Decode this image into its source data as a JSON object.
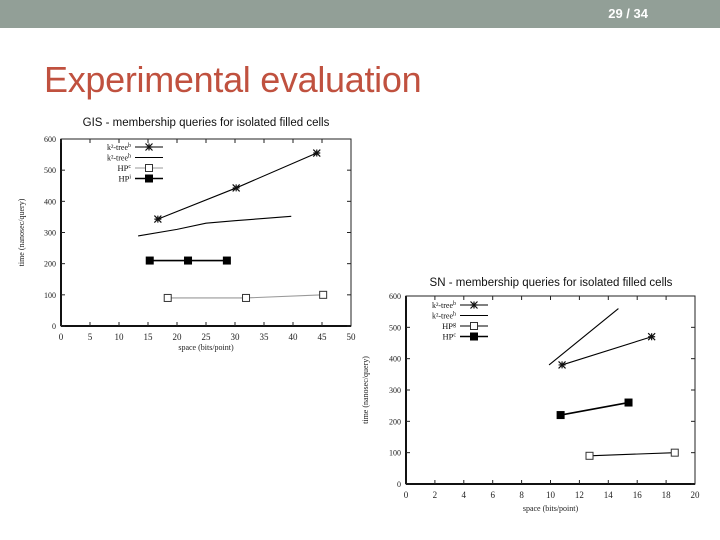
{
  "slide": {
    "page_indicator": "29 / 34",
    "title": "Experimental evaluation",
    "header_bar_color": "#929f97",
    "title_color": "#c0513f"
  },
  "chart_data": [
    {
      "type": "line",
      "title": "GIS - membership queries for isolated filled cells",
      "xlabel": "space (bits/point)",
      "ylabel": "time (nanosec/query)",
      "xlim": [
        0,
        50
      ],
      "ylim": [
        0,
        600
      ],
      "xticks": [
        0,
        5,
        10,
        15,
        20,
        25,
        30,
        35,
        40,
        45,
        50
      ],
      "yticks": [
        0,
        100,
        200,
        300,
        400,
        500,
        600
      ],
      "grid": false,
      "legend_position": "top-left",
      "series": [
        {
          "name": "k²-tree",
          "sup": "b",
          "marker": "star",
          "line": "solid",
          "color": "#000000",
          "x": [
            16.7,
            30.2,
            44.1
          ],
          "y": [
            343,
            443,
            555
          ]
        },
        {
          "name": "k²-tree",
          "sup": "h",
          "marker": "none",
          "line": "solid",
          "color": "#000000",
          "x": [
            13.3,
            20,
            25,
            30,
            35,
            39.7
          ],
          "y": [
            289,
            310,
            330,
            338,
            345,
            352
          ]
        },
        {
          "name": "HP",
          "sup": "c",
          "marker": "open-square",
          "line": "solid",
          "color": "#999999",
          "x": [
            18.4,
            31.9,
            45.2
          ],
          "y": [
            90,
            90,
            100
          ]
        },
        {
          "name": "HP",
          "sup": "i",
          "marker": "filled-square",
          "line": "solid",
          "color": "#000000",
          "x": [
            15.3,
            21.9,
            28.6
          ],
          "y": [
            210,
            210,
            210
          ]
        }
      ]
    },
    {
      "type": "line",
      "title": "SN - membership queries for isolated filled cells",
      "xlabel": "space (bits/point)",
      "ylabel": "time (nanosec/query)",
      "xlim": [
        0,
        20
      ],
      "ylim": [
        0,
        600
      ],
      "xticks": [
        0,
        2,
        4,
        6,
        8,
        10,
        12,
        14,
        16,
        18,
        20
      ],
      "yticks": [
        0,
        100,
        200,
        300,
        400,
        500,
        600
      ],
      "grid": false,
      "legend_position": "top-left",
      "series": [
        {
          "name": "k²-tree",
          "sup": "b",
          "marker": "star",
          "line": "solid",
          "color": "#000000",
          "x": [
            10.8,
            17.0
          ],
          "y": [
            380,
            470
          ]
        },
        {
          "name": "k²-tree",
          "sup": "h",
          "marker": "none",
          "line": "solid",
          "color": "#000000",
          "x": [
            9.9,
            14.7
          ],
          "y": [
            380,
            560
          ]
        },
        {
          "name": "HP",
          "sup": "g",
          "marker": "open-square",
          "line": "solid",
          "color": "#000000",
          "x": [
            12.7,
            18.6
          ],
          "y": [
            90,
            100
          ]
        },
        {
          "name": "HP",
          "sup": "c",
          "marker": "filled-square",
          "line": "solid",
          "color": "#000000",
          "x": [
            10.7,
            15.4
          ],
          "y": [
            220,
            260
          ]
        }
      ]
    }
  ]
}
